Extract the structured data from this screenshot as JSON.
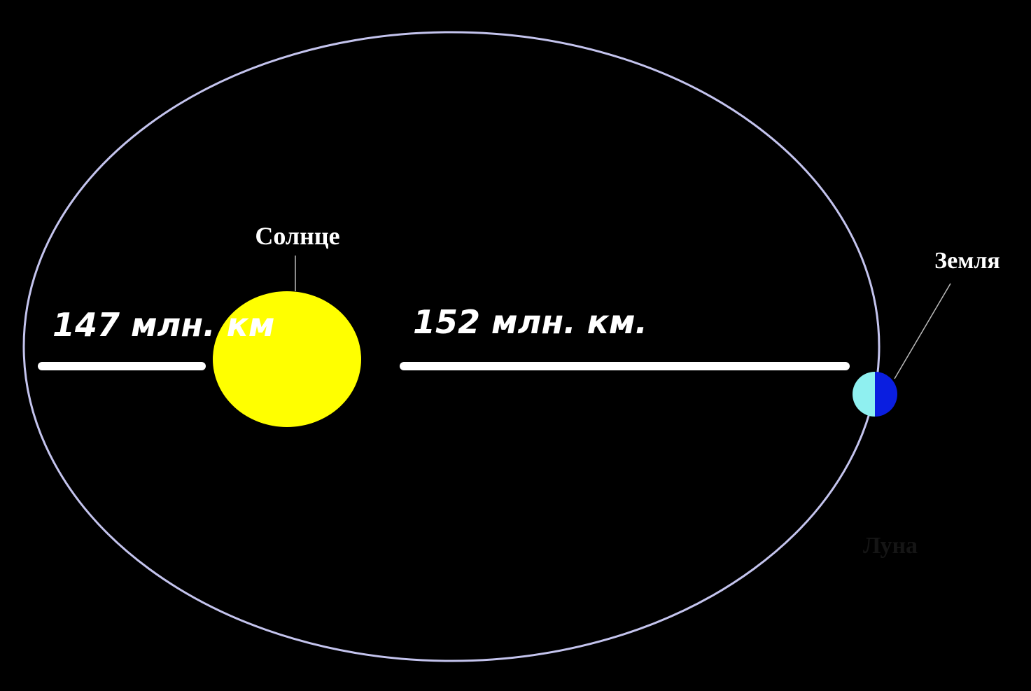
{
  "labels": {
    "sun": "Солнце",
    "earth": "Земля",
    "moon": "Луна"
  },
  "distances": {
    "perihelion": "147 млн. км",
    "aphelion": "152 млн. км."
  }
}
